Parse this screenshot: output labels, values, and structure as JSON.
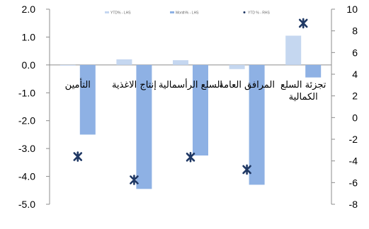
{
  "chart_data": {
    "type": "bar",
    "categories": [
      "التأمين",
      "إنتاج الاغذية",
      "السلع الرأسمالية",
      "المرافق العامة",
      "تجزئة السلع الكمالية"
    ],
    "category_lines": [
      [
        "التأمين"
      ],
      [
        "إنتاج الاغذية"
      ],
      [
        "السلع الرأسمالية"
      ],
      [
        "المرافق العامة"
      ],
      [
        "تجزئة السلع",
        "الكمالية"
      ]
    ],
    "series": [
      {
        "name": "",
        "axis": "left",
        "type": "bar",
        "color": "#c5d7f0",
        "values": [
          -0.02,
          0.2,
          0.17,
          -0.15,
          1.05
        ]
      },
      {
        "name": "",
        "axis": "left",
        "type": "bar",
        "color": "#8eb1e4",
        "values": [
          -2.5,
          -4.45,
          -3.25,
          -4.3,
          -0.45
        ]
      },
      {
        "name": "",
        "axis": "right",
        "type": "scatter",
        "color": "#1f3864",
        "values": [
          -3.6,
          -5.75,
          -3.65,
          -4.8,
          8.7
        ]
      }
    ],
    "legend_labels": [
      "YTD% - LHS",
      "Month% - LHS",
      "YTD % - RHS"
    ],
    "y_left": {
      "min": -5,
      "max": 2,
      "step": 1,
      "labels": [
        "2.0",
        "1.0",
        "0.0",
        "-1.0",
        "-2.0",
        "-3.0",
        "-4.0",
        "-5.0"
      ]
    },
    "y_right": {
      "min": -8,
      "max": 10,
      "step": 2,
      "labels": [
        "10",
        "8",
        "6",
        "4",
        "2",
        "0",
        "-2",
        "-4",
        "-6",
        "-8"
      ]
    },
    "legend_position": "top",
    "grid": false
  }
}
